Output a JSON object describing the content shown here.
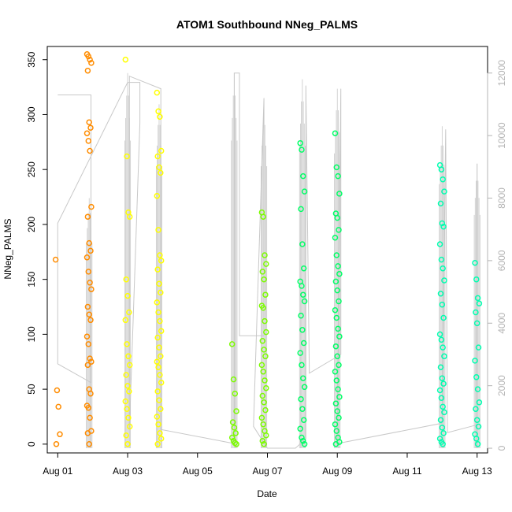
{
  "chart_data": {
    "type": "scatter",
    "title": "ATOM1 Southbound NNeg_PALMS",
    "xlabel": "Date",
    "ylabel": "NNeg_PALMS",
    "x_ticks": [
      "Aug 01",
      "Aug 03",
      "Aug 05",
      "Aug 07",
      "Aug 09",
      "Aug 11",
      "Aug 13"
    ],
    "x_tick_days": [
      1,
      3,
      5,
      7,
      9,
      11,
      13
    ],
    "xlim_days": [
      0.7,
      13.3
    ],
    "y_ticks": [
      0,
      50,
      100,
      150,
      200,
      250,
      300,
      350
    ],
    "ylim": [
      -8,
      362
    ],
    "y2_ticks": [
      0,
      2000,
      4000,
      6000,
      8000,
      10000,
      12000
    ],
    "y2lim": [
      -150,
      12850
    ],
    "grid": false,
    "colors": {
      "axis": "#000000",
      "secondary_axis": "#b4b4b4",
      "line": "#c8c8c8",
      "flight_1": "#ff8c00",
      "flight_2": "#ffff00",
      "flight_3": "#7cfc00",
      "flight_4": "#00ff66",
      "flight_5": "#00ffb0"
    },
    "secondary_line": [
      [
        1.0,
        11300
      ],
      [
        1.95,
        11300
      ],
      [
        1.95,
        2100
      ],
      [
        1.0,
        2700
      ],
      [
        1.0,
        7200
      ],
      [
        3.0,
        11700
      ],
      [
        3.35,
        11700
      ],
      [
        3.35,
        10400
      ],
      [
        3.05,
        600
      ],
      [
        3.05,
        11900
      ],
      [
        3.95,
        11500
      ],
      [
        3.95,
        600
      ],
      [
        6.05,
        150
      ],
      [
        6.05,
        12000
      ],
      [
        6.2,
        12000
      ],
      [
        6.2,
        3600
      ],
      [
        6.9,
        3600
      ],
      [
        6.9,
        11200
      ],
      [
        6.6,
        700
      ],
      [
        7.0,
        0
      ],
      [
        7.8,
        0
      ],
      [
        8.1,
        300
      ],
      [
        8.1,
        11600
      ],
      [
        8.2,
        2400
      ],
      [
        9.1,
        3000
      ],
      [
        9.1,
        11500
      ],
      [
        9.0,
        150
      ],
      [
        12.0,
        800
      ],
      [
        12.1,
        10200
      ],
      [
        12.15,
        500
      ],
      [
        13.0,
        750
      ],
      [
        13.0,
        9100
      ],
      [
        13.0,
        0
      ]
    ],
    "flights": [
      {
        "name": "",
        "color_key": "flight_1",
        "columns": [
          {
            "x": 1.0,
            "y": [
              168,
              49,
              34,
              9,
              0
            ],
            "spike": 0
          },
          {
            "x": 1.9,
            "y": [
              355,
              353,
              350,
              347,
              340,
              293,
              288,
              283,
              276,
              267,
              216,
              207,
              183,
              176,
              170,
              157,
              147,
              141,
              125,
              118,
              113,
              98,
              91,
              78,
              75,
              72,
              50,
              46,
              35,
              33,
              24,
              12,
              10,
              0
            ],
            "spike": 8000
          }
        ]
      },
      {
        "name": "",
        "color_key": "flight_2",
        "columns": [
          {
            "x": 3.0,
            "y": [
              350,
              262,
              211,
              207,
              150,
              135,
              120,
              113,
              91,
              80,
              72,
              63,
              53,
              48,
              39,
              32,
              24,
              16,
              8,
              0
            ],
            "spike": 12000
          },
          {
            "x": 3.9,
            "y": [
              320,
              303,
              298,
              267,
              262,
              252,
              247,
              226,
              195,
              172,
              167,
              159,
              146,
              138,
              129,
              120,
              112,
              103,
              97,
              88,
              80,
              75,
              70,
              63,
              56,
              48,
              40,
              32,
              25,
              18,
              10,
              5,
              0
            ],
            "spike": 11000
          }
        ]
      },
      {
        "name": "",
        "color_key": "flight_3",
        "columns": [
          {
            "x": 6.05,
            "y": [
              91,
              59,
              46,
              30,
              20,
              15,
              10,
              6,
              3,
              1,
              0
            ],
            "spike": 12000
          },
          {
            "x": 6.9,
            "y": [
              211,
              207,
              172,
              164,
              157,
              150,
              136,
              126,
              124,
              112,
              102,
              94,
              86,
              80,
              72,
              66,
              58,
              51,
              44,
              38,
              31,
              24,
              18,
              12,
              8,
              3,
              0
            ],
            "spike": 11000
          }
        ]
      },
      {
        "name": "",
        "color_key": "flight_4",
        "columns": [
          {
            "x": 8.0,
            "y": [
              274,
              268,
              244,
              230,
              214,
              182,
              160,
              148,
              144,
              136,
              130,
              117,
              104,
              92,
              83,
              72,
              60,
              52,
              41,
              32,
              22,
              14,
              6,
              3,
              0
            ],
            "spike": 11800
          },
          {
            "x": 9.0,
            "y": [
              283,
              252,
              244,
              228,
              210,
              206,
              195,
              188,
              172,
              162,
              155,
              148,
              140,
              130,
              122,
              115,
              105,
              98,
              89,
              80,
              72,
              66,
              58,
              50,
              43,
              37,
              30,
              24,
              18,
              12,
              6,
              2,
              0
            ],
            "spike": 11500
          }
        ]
      },
      {
        "name": "",
        "color_key": "flight_5",
        "columns": [
          {
            "x": 12.0,
            "y": [
              254,
              250,
              241,
              230,
              219,
              201,
              198,
              182,
              168,
              160,
              149,
              137,
              127,
              115,
              100,
              95,
              88,
              80,
              70,
              60,
              55,
              49,
              42,
              34,
              29,
              22,
              15,
              10,
              5,
              2,
              0
            ],
            "spike": 10300
          },
          {
            "x": 13.0,
            "y": [
              165,
              150,
              133,
              128,
              120,
              110,
              88,
              76,
              61,
              50,
              38,
              32,
              22,
              16,
              9,
              5,
              0
            ],
            "spike": 9100
          }
        ]
      }
    ]
  }
}
